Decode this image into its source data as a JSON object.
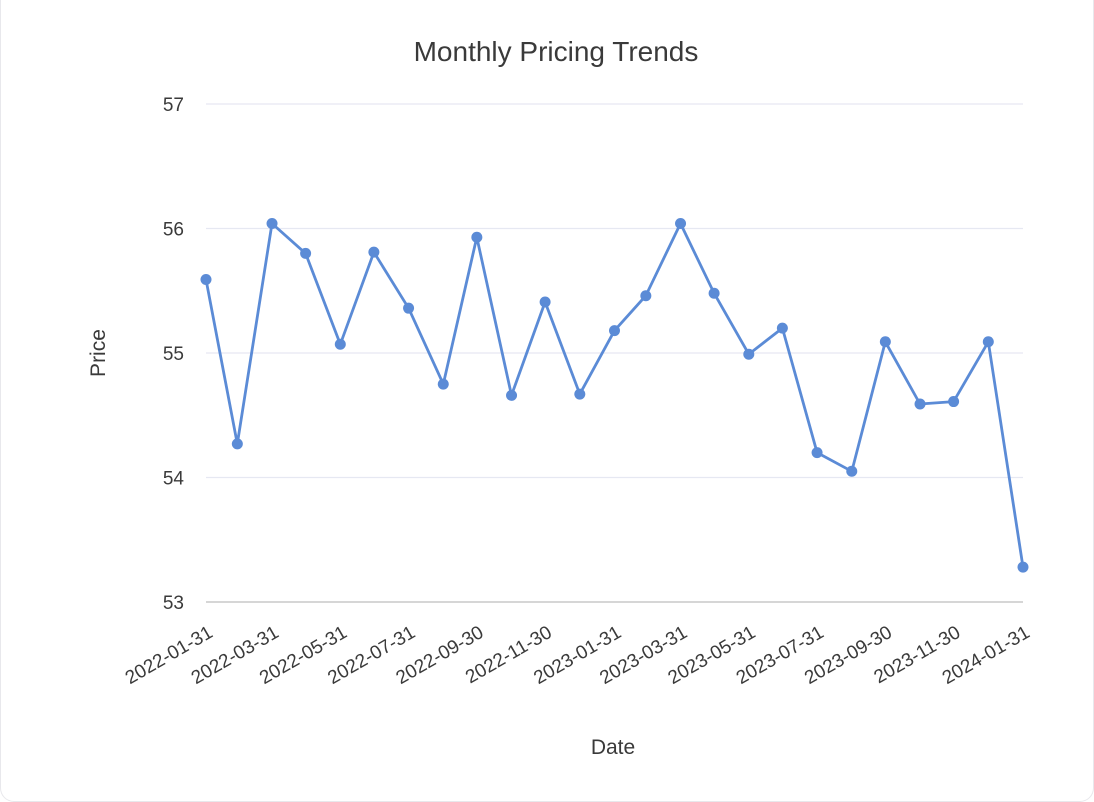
{
  "chart_data": {
    "type": "line",
    "title": "Monthly Pricing Trends",
    "xlabel": "Date",
    "ylabel": "Price",
    "ylim": [
      53,
      57
    ],
    "yticks": [
      53,
      54,
      55,
      56,
      57
    ],
    "grid": true,
    "x_tick_labels": [
      "2022-01-31",
      "2022-03-31",
      "2022-05-31",
      "2022-07-31",
      "2022-09-30",
      "2022-11-30",
      "2023-01-31",
      "2023-03-31",
      "2023-05-31",
      "2023-07-31",
      "2023-09-30",
      "2023-11-30",
      "2024-01-31"
    ],
    "x": [
      "2022-01-31",
      "2022-02-28",
      "2022-03-31",
      "2022-04-30",
      "2022-05-31",
      "2022-06-30",
      "2022-07-31",
      "2022-08-31",
      "2022-09-30",
      "2022-10-31",
      "2022-11-30",
      "2022-12-31",
      "2023-01-31",
      "2023-02-28",
      "2023-03-31",
      "2023-04-30",
      "2023-05-31",
      "2023-06-30",
      "2023-07-31",
      "2023-08-31",
      "2023-09-30",
      "2023-10-31",
      "2023-11-30",
      "2023-12-31",
      "2024-01-31"
    ],
    "series": [
      {
        "values": [
          55.59,
          54.27,
          56.04,
          55.8,
          55.07,
          55.81,
          55.36,
          54.75,
          55.93,
          54.66,
          55.41,
          54.67,
          55.18,
          55.46,
          56.04,
          55.48,
          54.99,
          55.2,
          54.2,
          54.05,
          55.09,
          54.59,
          54.61,
          55.09,
          53.28
        ]
      }
    ],
    "colors": {
      "line": "#5b8bd6",
      "grid": "#e6e8f2",
      "axis": "#c8c8c8",
      "text": "#3a3a3a"
    }
  }
}
